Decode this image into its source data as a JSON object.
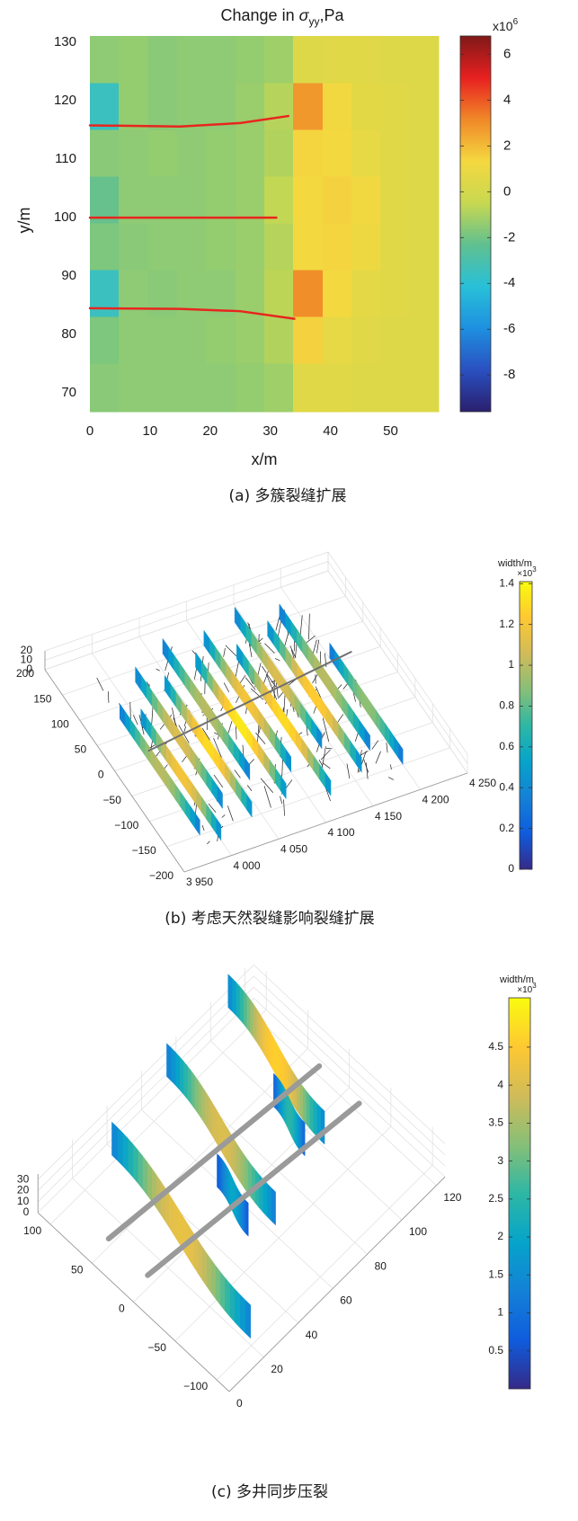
{
  "chart_data": [
    {
      "type": "heatmap",
      "title": {
        "text": "Change in ",
        "symbol": "σ",
        "subscript": "yy",
        "unit": ",Pa"
      },
      "xlabel": "x/m",
      "ylabel": "y/m",
      "xlim": [
        0,
        58
      ],
      "ylim": [
        66.8,
        131.1
      ],
      "xticks": [
        0,
        10,
        20,
        30,
        40,
        50
      ],
      "yticks": [
        70,
        80,
        90,
        100,
        110,
        120,
        130
      ],
      "xbins": [
        0,
        4.8,
        9.7,
        14.5,
        19.3,
        24.2,
        29,
        33.8,
        38.7,
        43.5,
        48.3,
        53.2,
        58
      ],
      "ybins": [
        131.1,
        123,
        115,
        107,
        99,
        91,
        83,
        75,
        66.8
      ],
      "z": [
        [
          -1.5,
          -1.4,
          -1.6,
          -1.5,
          -1.5,
          -1.4,
          -1.2,
          0.4,
          0.5,
          0.5,
          0.4,
          0.4
        ],
        [
          -3.5,
          -1.4,
          -1.6,
          -1.5,
          -1.5,
          -1.3,
          -0.8,
          2.8,
          1.2,
          0.6,
          0.5,
          0.4
        ],
        [
          -1.6,
          -1.5,
          -1.4,
          -1.5,
          -1.4,
          -1.3,
          -0.9,
          1.4,
          1.3,
          0.8,
          0.5,
          0.4
        ],
        [
          -2.2,
          -1.5,
          -1.5,
          -1.5,
          -1.4,
          -1.3,
          -0.6,
          1.3,
          1.5,
          1.2,
          0.5,
          0.4
        ],
        [
          -1.8,
          -1.6,
          -1.5,
          -1.5,
          -1.4,
          -1.3,
          -0.8,
          1.3,
          1.4,
          1.1,
          0.5,
          0.4
        ],
        [
          -3.5,
          -1.5,
          -1.6,
          -1.5,
          -1.5,
          -1.3,
          -0.7,
          3.0,
          1.3,
          0.7,
          0.5,
          0.4
        ],
        [
          -1.8,
          -1.5,
          -1.5,
          -1.5,
          -1.4,
          -1.3,
          -0.9,
          1.5,
          0.8,
          0.5,
          0.4,
          0.4
        ],
        [
          -1.6,
          -1.5,
          -1.5,
          -1.5,
          -1.5,
          -1.4,
          -1.2,
          0.5,
          0.5,
          0.4,
          0.4,
          0.4
        ]
      ],
      "colorbar": {
        "multiplier": "x10",
        "exponent": "6",
        "clim": [
          -9.6,
          6.8
        ],
        "ticks": [
          -8,
          -6,
          -4,
          -2,
          0,
          2,
          4,
          6
        ],
        "colormap": [
          "#2a1f6e",
          "#2a50c0",
          "#1e90e0",
          "#28c0d8",
          "#60c090",
          "#c8d850",
          "#f4d840",
          "#f08828",
          "#e82020",
          "#801818"
        ]
      },
      "lines": [
        {
          "color": "#e8251e",
          "x": [
            0,
            15,
            25,
            33
          ],
          "y": [
            115.8,
            115.6,
            116.2,
            117.4
          ]
        },
        {
          "color": "#e8251e",
          "x": [
            0,
            31
          ],
          "y": [
            100,
            100
          ]
        },
        {
          "color": "#e8251e",
          "x": [
            0,
            15,
            25,
            34
          ],
          "y": [
            84.5,
            84.4,
            84,
            82.7
          ]
        }
      ],
      "caption": "(a) 多簇裂缝扩展"
    },
    {
      "type": "3d",
      "xlim": [
        3950,
        4250
      ],
      "ylim": [
        -200,
        200
      ],
      "zlim": [
        0,
        20
      ],
      "xticks": [
        {
          "value": 3950,
          "label": "3 950"
        },
        {
          "value": 4000,
          "label": "4 000"
        },
        {
          "value": 4050,
          "label": "4 050"
        },
        {
          "value": 4100,
          "label": "4 100"
        },
        {
          "value": 4150,
          "label": "4 150"
        },
        {
          "value": 4200,
          "label": "4 200"
        },
        {
          "value": 4250,
          "label": "4 250"
        }
      ],
      "yticks": [
        {
          "value": -200,
          "label": "−200"
        },
        {
          "value": -150,
          "label": "−150"
        },
        {
          "value": -100,
          "label": "−100"
        },
        {
          "value": -50,
          "label": "−50"
        },
        0,
        50,
        100,
        150,
        200
      ],
      "zticks": [
        0,
        10,
        20
      ],
      "colorbar": {
        "title": "width/m",
        "multiplier": "×10",
        "exponent": "3",
        "clim": [
          0,
          1.41
        ],
        "ticks": [
          0,
          0.2,
          0.4,
          0.6,
          0.8,
          1,
          1.2,
          1.4
        ],
        "colormap": [
          "#352a87",
          "#0f5cdd",
          "#1481d6",
          "#06a4ca",
          "#2eb7a4",
          "#87bf77",
          "#d1bb59",
          "#fec832",
          "#f9fb0e"
        ]
      },
      "wells": [
        {
          "color": "#707070",
          "x": [
            3991,
            4222
          ],
          "y": [
            13,
            58
          ]
        }
      ],
      "fractures": [
        {
          "x": 3985,
          "y": [
            -150,
            80
          ],
          "width": 1.0
        },
        {
          "x": 4000,
          "y": [
            -170,
            60
          ],
          "width": 1.2
        },
        {
          "x": 4020,
          "y": [
            -120,
            130
          ],
          "width": 1.1
        },
        {
          "x": 4040,
          "y": [
            -150,
            100
          ],
          "width": 1.3
        },
        {
          "x": 4060,
          "y": [
            -90,
            160
          ],
          "width": 1.0
        },
        {
          "x": 4080,
          "y": [
            -140,
            120
          ],
          "width": 1.35
        },
        {
          "x": 4100,
          "y": [
            -100,
            150
          ],
          "width": 1.2
        },
        {
          "x": 4120,
          "y": [
            -160,
            110
          ],
          "width": 1.3
        },
        {
          "x": 4140,
          "y": [
            -80,
            170
          ],
          "width": 1.1
        },
        {
          "x": 4160,
          "y": [
            -140,
            130
          ],
          "width": 1.25
        },
        {
          "x": 4180,
          "y": [
            -110,
            150
          ],
          "width": 1.0
        },
        {
          "x": 4200,
          "y": [
            -150,
            60
          ],
          "width": 0.9
        }
      ],
      "caption": "(b) 考虑天然裂缝影响裂缝扩展"
    },
    {
      "type": "3d",
      "xlim": [
        0,
        125
      ],
      "ylim": [
        -115,
        115
      ],
      "zlim": [
        0,
        35
      ],
      "xticks": [
        0,
        20,
        40,
        60,
        80,
        100,
        120
      ],
      "yticks": [
        {
          "value": -100,
          "label": "−100"
        },
        {
          "value": -50,
          "label": "−50"
        },
        0,
        50,
        100
      ],
      "zticks": [
        0,
        10,
        20,
        30
      ],
      "colorbar": {
        "title": "width/m",
        "multiplier": "×10",
        "exponent": "3",
        "clim": [
          0,
          5.15
        ],
        "ticks": [
          0.5,
          1,
          1.5,
          2,
          2.5,
          3,
          3.5,
          4,
          4.5
        ],
        "colormap": [
          "#352a87",
          "#0f5cdd",
          "#1481d6",
          "#06a4ca",
          "#2eb7a4",
          "#87bf77",
          "#d1bb59",
          "#fec832",
          "#f9fb0e"
        ]
      },
      "wells": [
        {
          "color": "#9a9a9a",
          "x": [
            12,
            123
          ],
          "y": [
            55,
            32
          ]
        },
        {
          "color": "#9a9a9a",
          "x": [
            12,
            123
          ],
          "y": [
            8,
            -16
          ]
        }
      ],
      "fractures": [
        {
          "x": 30,
          "y": [
            -95,
            105
          ],
          "bend": 8,
          "width": 4.2
        },
        {
          "x": 55,
          "y": [
            -30,
            20
          ],
          "bend": 3,
          "width": 2.0
        },
        {
          "x": 70,
          "y": [
            -40,
            120
          ],
          "bend": 7,
          "width": 4.0
        },
        {
          "x": 95,
          "y": [
            -15,
            35
          ],
          "bend": 3,
          "width": 2.5
        },
        {
          "x": 108,
          "y": [
            -20,
            125
          ],
          "bend": 7,
          "width": 4.6
        }
      ],
      "caption": "(c) 多井同步压裂"
    }
  ]
}
